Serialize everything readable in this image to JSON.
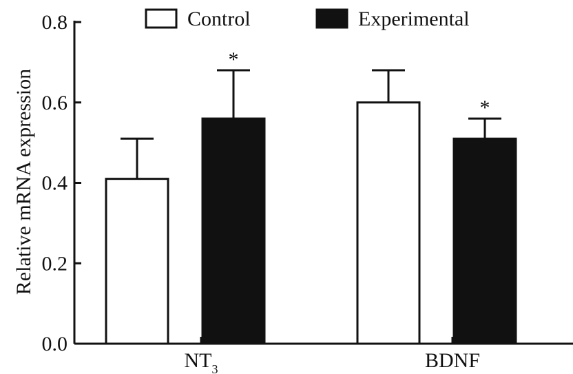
{
  "chart_data": {
    "type": "bar",
    "categories": [
      {
        "label": "NT",
        "subscript": "3"
      },
      {
        "label": "BDNF",
        "subscript": ""
      }
    ],
    "series": [
      {
        "name": "Control",
        "color": "#ffffff",
        "values": [
          0.41,
          0.6
        ],
        "errors": [
          0.1,
          0.08
        ],
        "significance": [
          "",
          ""
        ]
      },
      {
        "name": "Experimental",
        "color": "#111111",
        "values": [
          0.56,
          0.51
        ],
        "errors": [
          0.12,
          0.05
        ],
        "significance": [
          "*",
          "*"
        ]
      }
    ],
    "ylabel": "Relative mRNA expression",
    "xlabel": "",
    "title": "",
    "ylim": [
      0,
      0.8
    ],
    "yticks": [
      "0.0",
      "0.2",
      "0.4",
      "0.6",
      "0.8"
    ],
    "legend": {
      "position": "top",
      "orientation": "horizontal"
    },
    "grid": false
  }
}
